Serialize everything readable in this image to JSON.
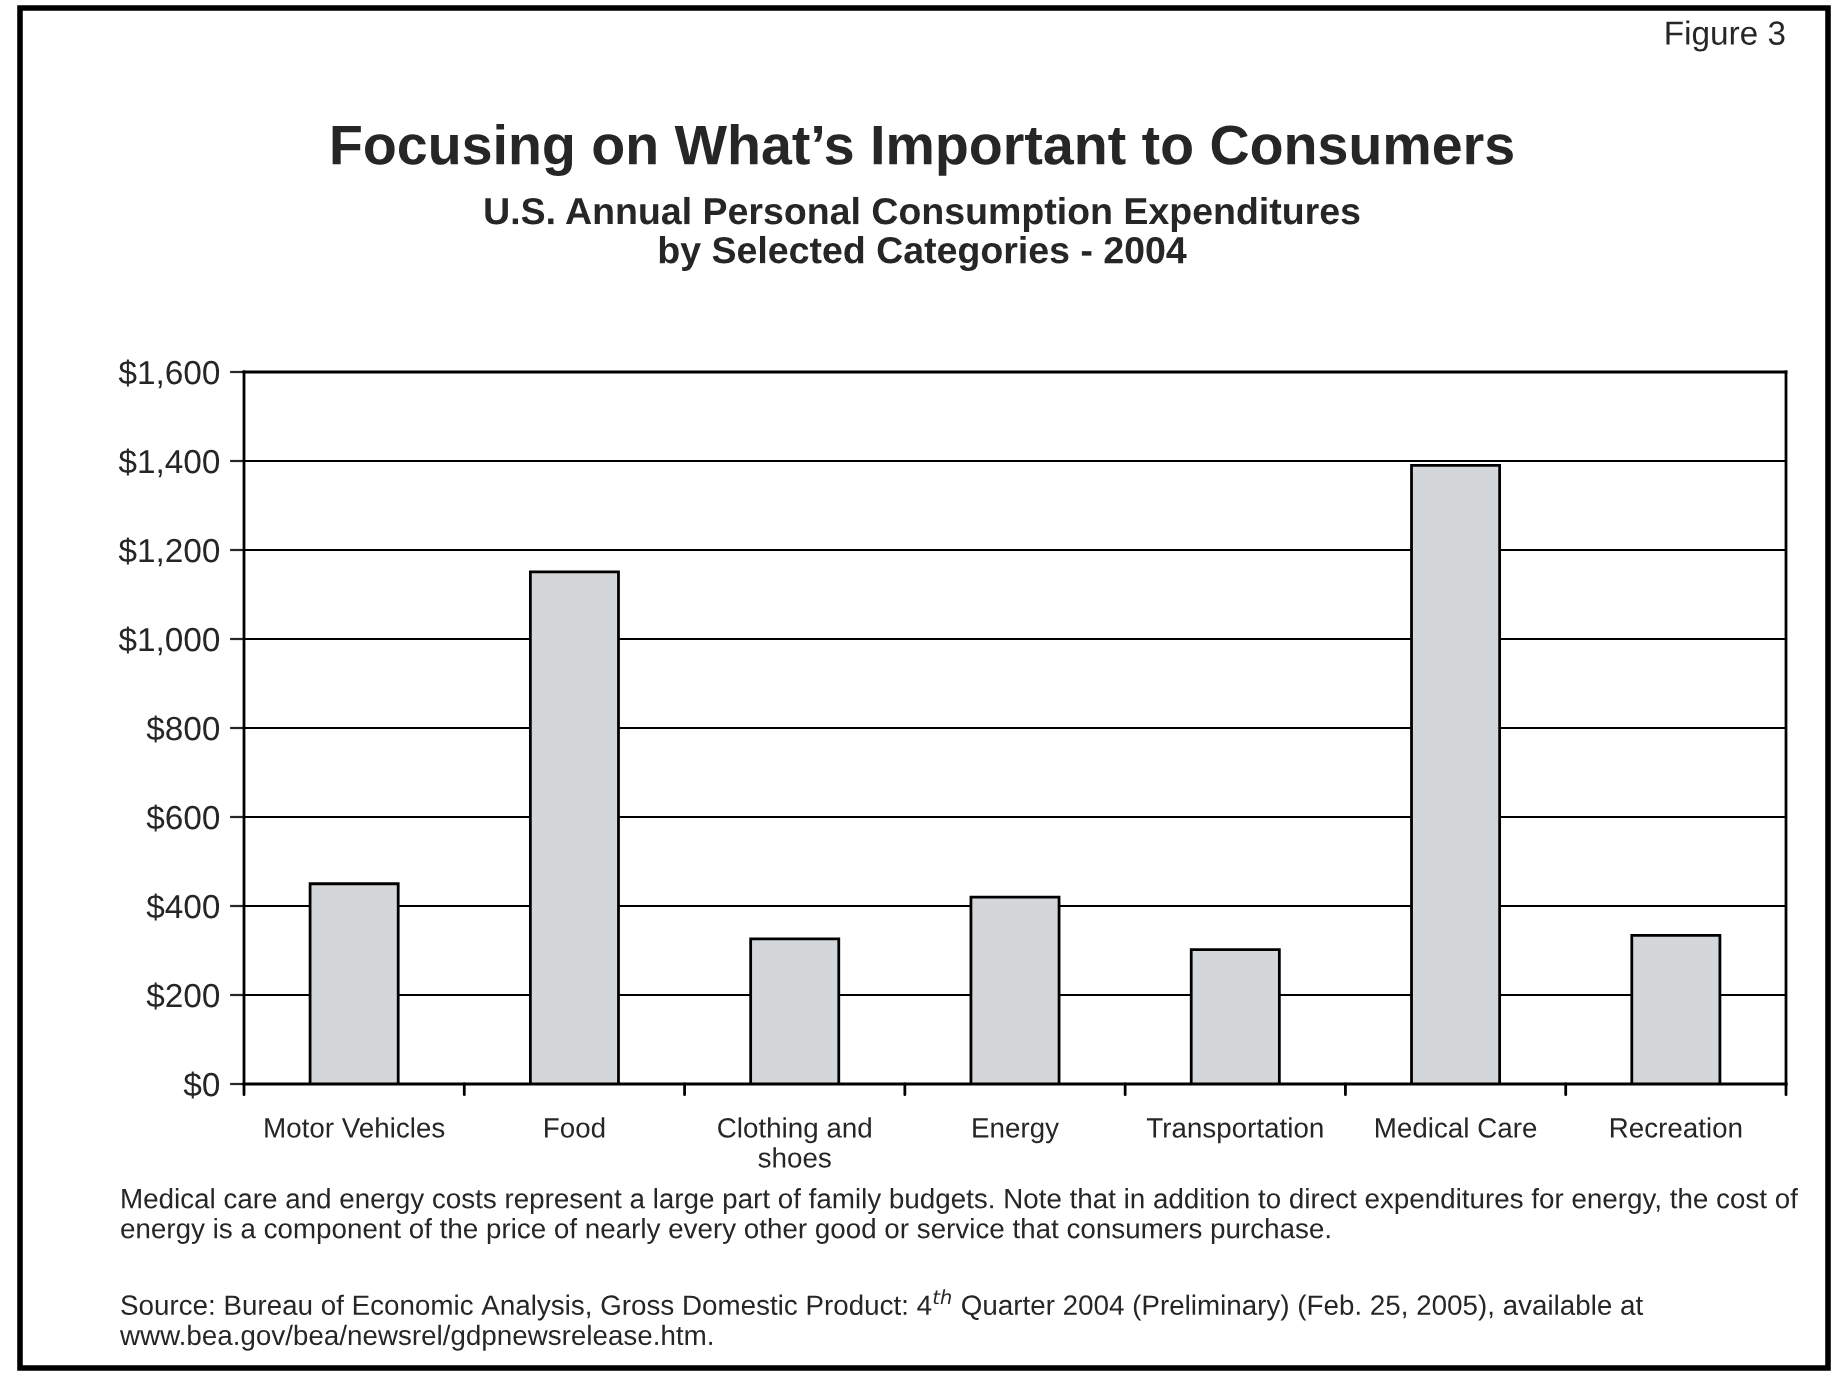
{
  "chart_data": {
    "type": "bar",
    "title": "Focusing on What’s Important to Consumers",
    "subtitle": "U.S. Annual Personal Consumption Expenditures\nby Selected Categories - 2004",
    "categories": [
      "Motor Vehicles",
      "Food",
      "Clothing and shoes",
      "Energy",
      "Transportation",
      "Medical Care",
      "Recreation"
    ],
    "values": [
      450,
      1151,
      326,
      420,
      302,
      1390,
      334
    ],
    "color": "#d4d7da",
    "ylim": [
      0,
      1600
    ],
    "yticks": [
      {
        "value": 0,
        "label": "$0"
      },
      {
        "value": 200,
        "label": "$200"
      },
      {
        "value": 400,
        "label": "$400"
      },
      {
        "value": 600,
        "label": "$600"
      },
      {
        "value": 800,
        "label": "$800"
      },
      {
        "value": 1000,
        "label": "$1,000"
      },
      {
        "value": 1200,
        "label": "$1,200"
      },
      {
        "value": 1400,
        "label": "$1,400"
      },
      {
        "value": 1600,
        "label": "$1,600"
      }
    ],
    "grid": "y",
    "annotations": [
      "Figure 3",
      "Medical care and energy costs represent a large part of family budgets. Note that in addition to direct expenditures for energy, the cost of energy is a component of the price of nearly every other good or service that consumers purchase.",
      "Source: Bureau of Economic Analysis, Gross Domestic Product: 4$^{th}$ Quarter 2004 (Preliminary) (Feb. 25, 2005), available at www.bea.gov/bea/newsrel/gdpnewsrelease.htm."
    ]
  }
}
